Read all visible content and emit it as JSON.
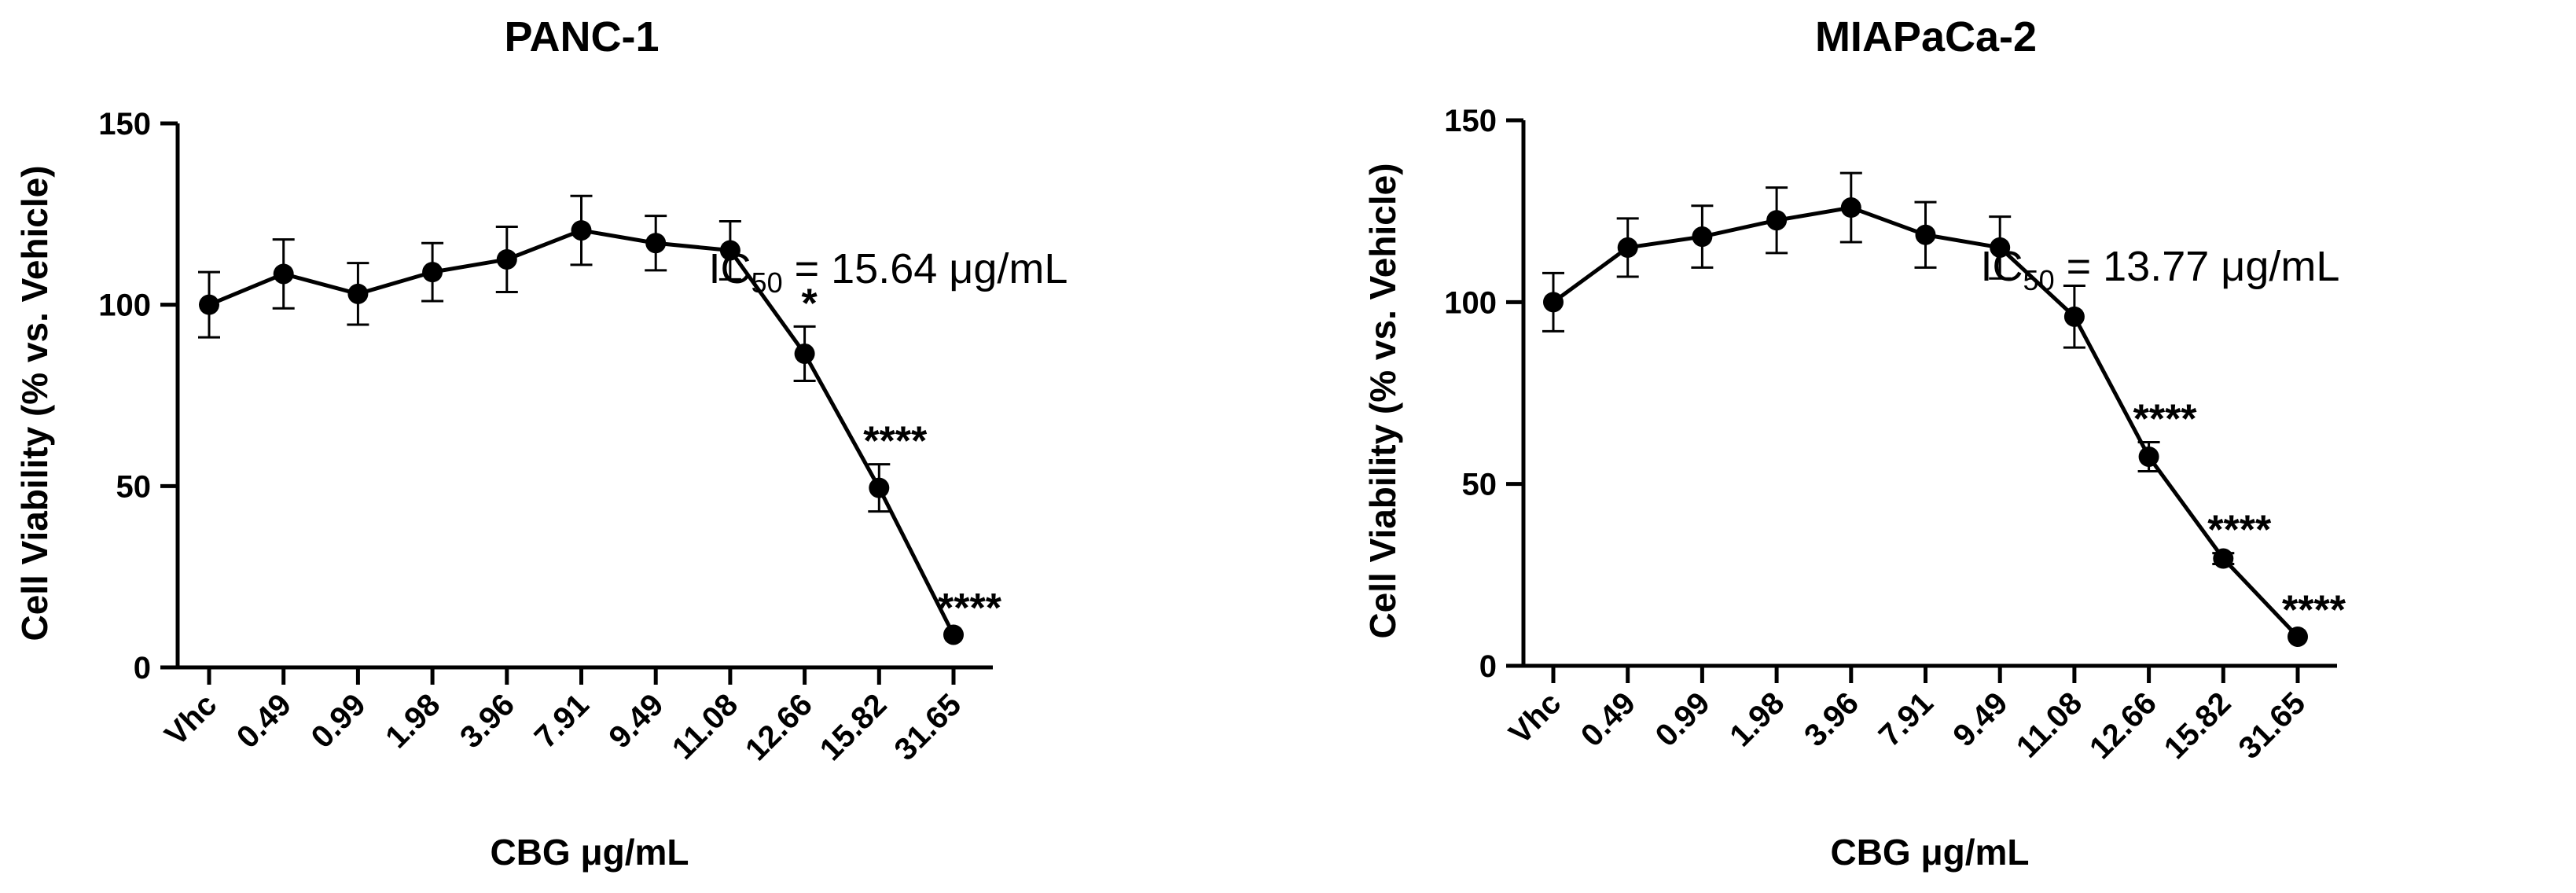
{
  "chart_data": [
    {
      "type": "line",
      "title": "PANC-1",
      "xlabel": "CBG μg/mL",
      "ylabel": "Cell Viability (% vs. Vehicle)",
      "ylim": [
        0,
        150
      ],
      "yticks": [
        0,
        50,
        100,
        150
      ],
      "categories": [
        "Vhc",
        "0.49",
        "0.99",
        "1.98",
        "3.96",
        "7.91",
        "9.49",
        "11.08",
        "12.66",
        "15.82",
        "31.65"
      ],
      "values": [
        100,
        108.5,
        103,
        109,
        112.5,
        120.5,
        117,
        115,
        86.5,
        49.5,
        9
      ],
      "errors": [
        9,
        9.5,
        8.5,
        8,
        9,
        9.5,
        7.5,
        8,
        7.5,
        6.5,
        1
      ],
      "annotations": [
        "",
        "",
        "",
        "",
        "",
        "",
        "",
        "",
        "*",
        "****",
        "****"
      ],
      "ic50": {
        "prefix": "IC",
        "sub": "50",
        "text": " = 15.64 μg/mL"
      }
    },
    {
      "type": "line",
      "title": "MIAPaCa-2",
      "xlabel": "CBG μg/mL",
      "ylabel": "Cell Viability (% vs. Vehicle)",
      "ylim": [
        0,
        150
      ],
      "yticks": [
        0,
        50,
        100,
        150
      ],
      "categories": [
        "Vhc",
        "0.49",
        "0.99",
        "1.98",
        "3.96",
        "7.91",
        "9.49",
        "11.08",
        "12.66",
        "15.82",
        "31.65"
      ],
      "values": [
        100,
        115,
        118,
        122.5,
        126,
        118.5,
        115,
        96,
        57.5,
        29.5,
        8
      ],
      "errors": [
        8,
        8,
        8.5,
        9,
        9.5,
        9,
        8.5,
        8.5,
        4,
        1.5,
        1
      ],
      "annotations": [
        "",
        "",
        "",
        "",
        "",
        "",
        "",
        "",
        "****",
        "****",
        "****"
      ],
      "ic50": {
        "prefix": "IC",
        "sub": "50",
        "text": " = 13.77 μg/mL"
      }
    }
  ]
}
